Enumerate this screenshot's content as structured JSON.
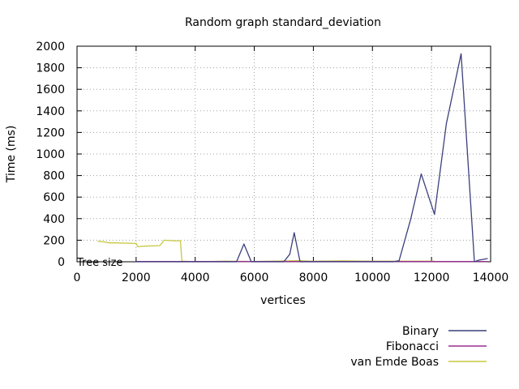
{
  "chart_data": {
    "type": "line",
    "title": "Random graph standard_deviation",
    "xlabel": "vertices",
    "ylabel": "Time (ms)",
    "xlim": [
      0,
      14000
    ],
    "ylim": [
      0,
      2000
    ],
    "xticks": [
      0,
      2000,
      4000,
      6000,
      8000,
      10000,
      12000,
      14000
    ],
    "yticks": [
      0,
      200,
      400,
      600,
      800,
      1000,
      1200,
      1400,
      1600,
      1800,
      2000
    ],
    "grid": true,
    "legend_position": "bottom-right",
    "annotation": "Tree size",
    "series": [
      {
        "name": "Binary",
        "color": "#3b3f7c",
        "points": [
          [
            2000,
            0
          ],
          [
            3500,
            0
          ],
          [
            5400,
            0
          ],
          [
            5650,
            165
          ],
          [
            5900,
            0
          ],
          [
            7000,
            0
          ],
          [
            7200,
            70
          ],
          [
            7350,
            270
          ],
          [
            7550,
            0
          ],
          [
            10700,
            0
          ],
          [
            10900,
            10
          ],
          [
            11300,
            400
          ],
          [
            11650,
            815
          ],
          [
            12100,
            440
          ],
          [
            12500,
            1280
          ],
          [
            13000,
            1930
          ],
          [
            13450,
            0
          ],
          [
            13600,
            15
          ],
          [
            13900,
            30
          ]
        ]
      },
      {
        "name": "Fibonacci",
        "color": "#9a2f8f",
        "points": [
          [
            2000,
            2
          ],
          [
            13900,
            2
          ]
        ]
      },
      {
        "name": "van Emde Boas",
        "color": "#c8c840",
        "points": [
          [
            700,
            190
          ],
          [
            900,
            185
          ],
          [
            1100,
            175
          ],
          [
            1300,
            175
          ],
          [
            2000,
            170
          ],
          [
            2050,
            140
          ],
          [
            2300,
            145
          ],
          [
            2800,
            150
          ],
          [
            2950,
            200
          ],
          [
            3300,
            195
          ],
          [
            3500,
            195
          ],
          [
            3550,
            5
          ],
          [
            4000,
            0
          ],
          [
            5000,
            5
          ],
          [
            6000,
            3
          ],
          [
            7500,
            10
          ],
          [
            8000,
            5
          ],
          [
            9000,
            8
          ],
          [
            10000,
            5
          ],
          [
            11000,
            5
          ],
          [
            12100,
            5
          ]
        ]
      }
    ]
  }
}
